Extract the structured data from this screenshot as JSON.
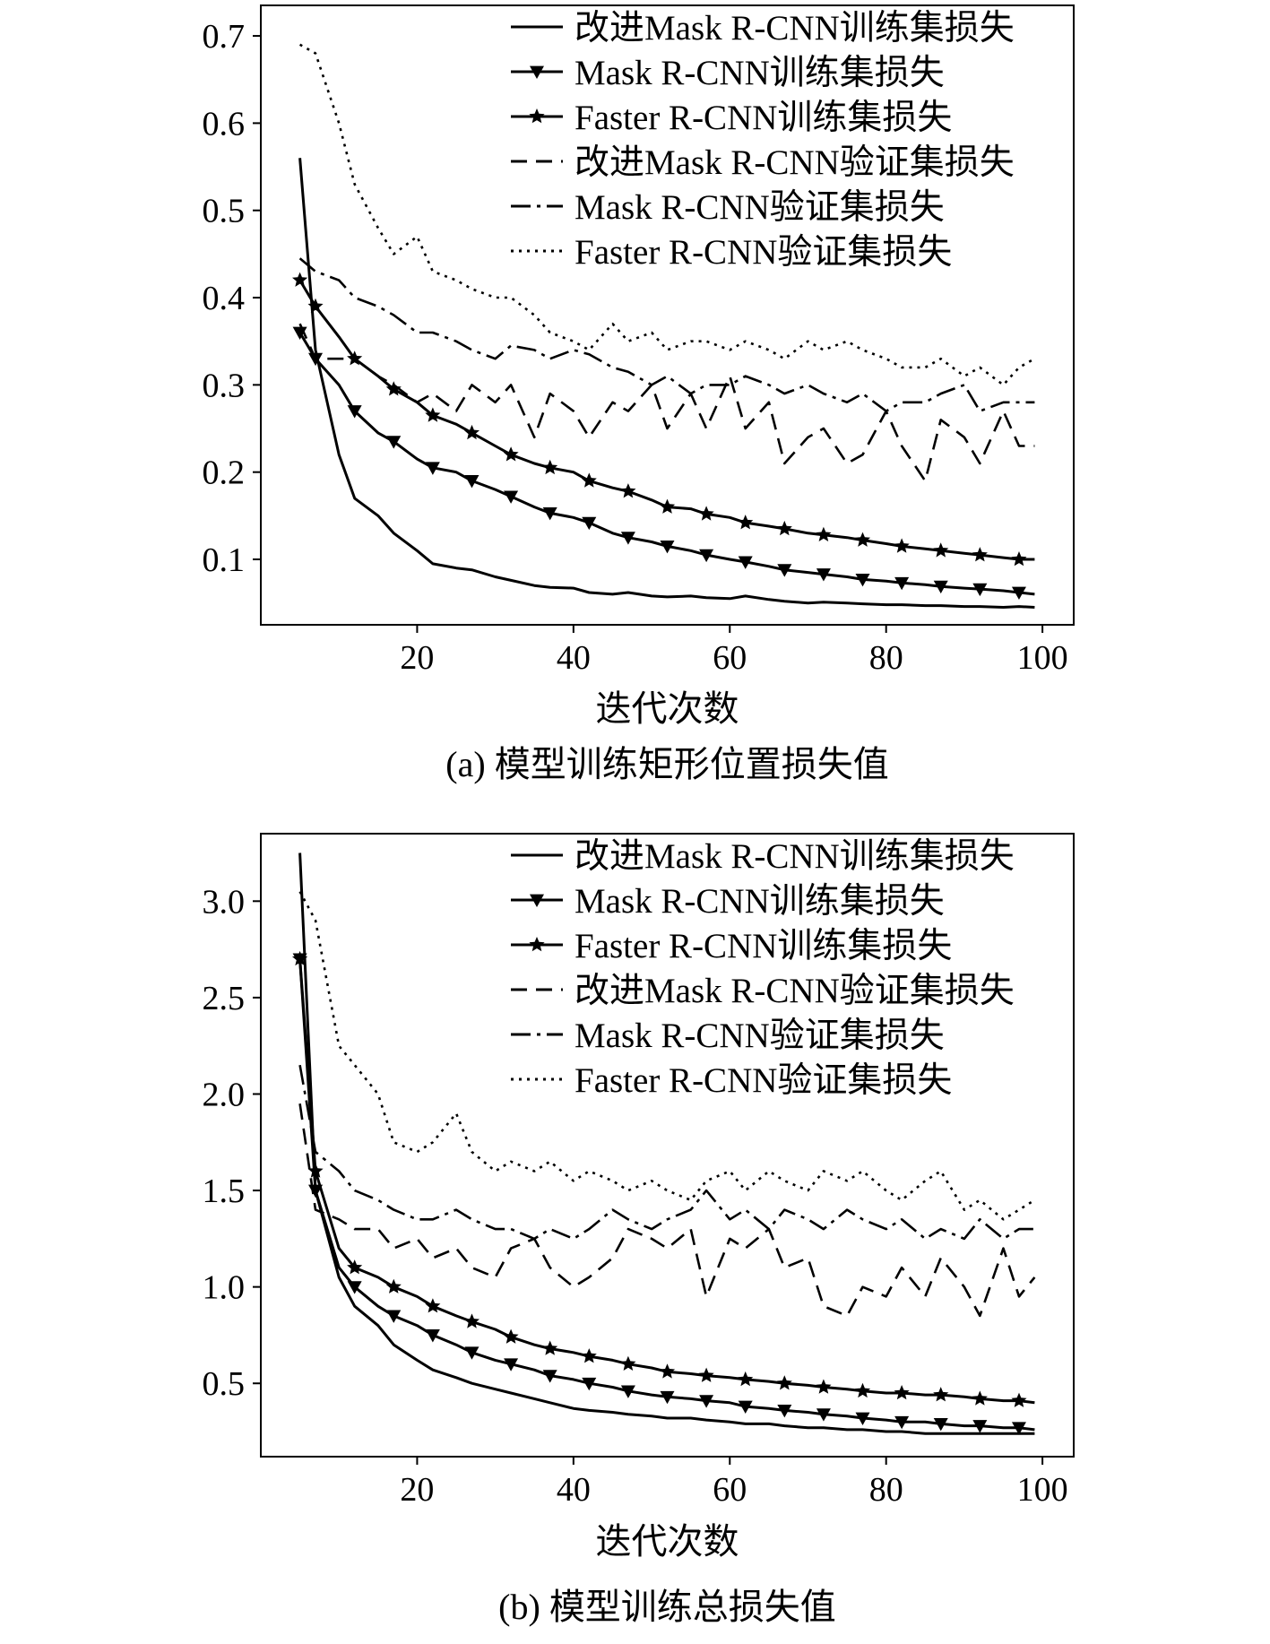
{
  "chart_data": [
    {
      "type": "line",
      "xlabel": "迭代次数",
      "ylabel": "",
      "caption": "(a) 模型训练矩形位置损失值",
      "xlim": [
        0,
        104
      ],
      "ylim": [
        0.025,
        0.735
      ],
      "xticks": [
        "20",
        "40",
        "60",
        "80",
        "100"
      ],
      "yticks": [
        "0.1",
        "0.2",
        "0.3",
        "0.4",
        "0.5",
        "0.6",
        "0.7"
      ],
      "legend_position": "top-right",
      "x": [
        5,
        7,
        10,
        12,
        15,
        17,
        20,
        22,
        25,
        27,
        30,
        32,
        35,
        37,
        40,
        42,
        45,
        47,
        50,
        52,
        55,
        57,
        60,
        62,
        65,
        67,
        70,
        72,
        75,
        77,
        80,
        82,
        85,
        87,
        90,
        92,
        95,
        97,
        99
      ],
      "series": [
        {
          "name": "改进Mask R-CNN训练集损失",
          "style": "solid",
          "marker": "",
          "values": [
            0.56,
            0.34,
            0.22,
            0.17,
            0.15,
            0.13,
            0.11,
            0.095,
            0.09,
            0.088,
            0.08,
            0.076,
            0.07,
            0.068,
            0.067,
            0.062,
            0.06,
            0.062,
            0.058,
            0.057,
            0.058,
            0.056,
            0.055,
            0.058,
            0.054,
            0.052,
            0.05,
            0.051,
            0.05,
            0.049,
            0.048,
            0.048,
            0.047,
            0.047,
            0.046,
            0.046,
            0.045,
            0.046,
            0.045
          ]
        },
        {
          "name": "Mask R-CNN训练集损失",
          "style": "solid",
          "marker": "triangle-down",
          "values": [
            0.36,
            0.33,
            0.3,
            0.27,
            0.245,
            0.235,
            0.215,
            0.205,
            0.2,
            0.19,
            0.18,
            0.172,
            0.16,
            0.153,
            0.148,
            0.142,
            0.13,
            0.125,
            0.12,
            0.115,
            0.11,
            0.105,
            0.1,
            0.097,
            0.092,
            0.088,
            0.085,
            0.083,
            0.08,
            0.077,
            0.075,
            0.073,
            0.071,
            0.069,
            0.067,
            0.066,
            0.064,
            0.062,
            0.06
          ]
        },
        {
          "name": "Faster R-CNN训练集损失",
          "style": "solid",
          "marker": "star",
          "values": [
            0.42,
            0.39,
            0.355,
            0.33,
            0.31,
            0.295,
            0.28,
            0.265,
            0.255,
            0.245,
            0.23,
            0.22,
            0.21,
            0.205,
            0.2,
            0.19,
            0.182,
            0.178,
            0.168,
            0.16,
            0.158,
            0.152,
            0.148,
            0.142,
            0.138,
            0.135,
            0.13,
            0.128,
            0.125,
            0.122,
            0.118,
            0.115,
            0.112,
            0.11,
            0.107,
            0.105,
            0.102,
            0.1,
            0.1
          ]
        },
        {
          "name": "改进Mask R-CNN验证集损失",
          "style": "dashed",
          "marker": "",
          "values": [
            0.37,
            0.33,
            0.33,
            0.33,
            0.31,
            0.3,
            0.28,
            0.29,
            0.27,
            0.3,
            0.28,
            0.3,
            0.24,
            0.29,
            0.27,
            0.24,
            0.28,
            0.27,
            0.3,
            0.25,
            0.29,
            0.25,
            0.31,
            0.25,
            0.28,
            0.21,
            0.24,
            0.25,
            0.21,
            0.22,
            0.27,
            0.23,
            0.19,
            0.26,
            0.24,
            0.21,
            0.27,
            0.23,
            0.23
          ]
        },
        {
          "name": "Mask R-CNN验证集损失",
          "style": "dashdot",
          "marker": "",
          "values": [
            0.445,
            0.43,
            0.42,
            0.4,
            0.39,
            0.38,
            0.36,
            0.36,
            0.35,
            0.34,
            0.33,
            0.345,
            0.34,
            0.33,
            0.34,
            0.335,
            0.32,
            0.315,
            0.3,
            0.31,
            0.29,
            0.3,
            0.3,
            0.31,
            0.3,
            0.29,
            0.3,
            0.29,
            0.28,
            0.29,
            0.27,
            0.28,
            0.28,
            0.29,
            0.3,
            0.27,
            0.28,
            0.28,
            0.28
          ]
        },
        {
          "name": "Faster R-CNN验证集损失",
          "style": "dotted",
          "marker": "",
          "values": [
            0.69,
            0.68,
            0.6,
            0.53,
            0.48,
            0.45,
            0.47,
            0.43,
            0.42,
            0.41,
            0.4,
            0.4,
            0.38,
            0.36,
            0.35,
            0.34,
            0.37,
            0.35,
            0.36,
            0.34,
            0.35,
            0.35,
            0.34,
            0.35,
            0.34,
            0.33,
            0.35,
            0.34,
            0.35,
            0.34,
            0.33,
            0.32,
            0.32,
            0.33,
            0.31,
            0.32,
            0.3,
            0.32,
            0.33
          ]
        }
      ]
    },
    {
      "type": "line",
      "xlabel": "迭代次数",
      "ylabel": "",
      "caption": "(b) 模型训练总损失值",
      "xlim": [
        0,
        104
      ],
      "ylim": [
        0.12,
        3.35
      ],
      "xticks": [
        "20",
        "40",
        "60",
        "80",
        "100"
      ],
      "yticks": [
        "0.5",
        "1.0",
        "1.5",
        "2.0",
        "2.5",
        "3.0"
      ],
      "legend_position": "top-right",
      "x": [
        5,
        7,
        10,
        12,
        15,
        17,
        20,
        22,
        25,
        27,
        30,
        32,
        35,
        37,
        40,
        42,
        45,
        47,
        50,
        52,
        55,
        57,
        60,
        62,
        65,
        67,
        70,
        72,
        75,
        77,
        80,
        82,
        85,
        87,
        90,
        92,
        95,
        97,
        99
      ],
      "series": [
        {
          "name": "改进Mask R-CNN训练集损失",
          "style": "solid",
          "marker": "",
          "values": [
            3.25,
            1.5,
            1.05,
            0.9,
            0.8,
            0.7,
            0.62,
            0.57,
            0.53,
            0.5,
            0.47,
            0.45,
            0.42,
            0.4,
            0.37,
            0.36,
            0.35,
            0.34,
            0.33,
            0.32,
            0.32,
            0.31,
            0.3,
            0.29,
            0.29,
            0.28,
            0.27,
            0.27,
            0.26,
            0.26,
            0.25,
            0.25,
            0.24,
            0.24,
            0.24,
            0.24,
            0.24,
            0.24,
            0.24
          ]
        },
        {
          "name": "Mask R-CNN训练集损失",
          "style": "solid",
          "marker": "triangle-down",
          "values": [
            2.7,
            1.5,
            1.1,
            1.0,
            0.9,
            0.85,
            0.8,
            0.75,
            0.7,
            0.66,
            0.62,
            0.6,
            0.57,
            0.54,
            0.52,
            0.5,
            0.48,
            0.46,
            0.44,
            0.43,
            0.42,
            0.41,
            0.4,
            0.38,
            0.37,
            0.36,
            0.35,
            0.34,
            0.33,
            0.32,
            0.31,
            0.3,
            0.3,
            0.29,
            0.28,
            0.28,
            0.27,
            0.27,
            0.26
          ]
        },
        {
          "name": "Faster R-CNN训练集损失",
          "style": "solid",
          "marker": "star",
          "values": [
            2.7,
            1.6,
            1.2,
            1.1,
            1.05,
            1.0,
            0.95,
            0.9,
            0.85,
            0.82,
            0.78,
            0.74,
            0.7,
            0.68,
            0.66,
            0.64,
            0.62,
            0.6,
            0.58,
            0.56,
            0.55,
            0.54,
            0.53,
            0.52,
            0.51,
            0.5,
            0.49,
            0.48,
            0.47,
            0.46,
            0.45,
            0.45,
            0.44,
            0.44,
            0.43,
            0.42,
            0.41,
            0.41,
            0.4
          ]
        },
        {
          "name": "改进Mask R-CNN验证集损失",
          "style": "dashed",
          "marker": "",
          "values": [
            1.95,
            1.4,
            1.35,
            1.3,
            1.3,
            1.2,
            1.25,
            1.15,
            1.2,
            1.1,
            1.05,
            1.2,
            1.25,
            1.1,
            1.0,
            1.05,
            1.15,
            1.3,
            1.25,
            1.2,
            1.3,
            0.95,
            1.25,
            1.2,
            1.3,
            1.1,
            1.15,
            0.9,
            0.85,
            1.0,
            0.95,
            1.1,
            0.95,
            1.15,
            1.0,
            0.85,
            1.2,
            0.95,
            1.05
          ]
        },
        {
          "name": "Mask R-CNN验证集损失",
          "style": "dashdot",
          "marker": "",
          "values": [
            2.15,
            1.7,
            1.6,
            1.5,
            1.45,
            1.4,
            1.35,
            1.35,
            1.4,
            1.35,
            1.3,
            1.3,
            1.25,
            1.3,
            1.25,
            1.3,
            1.4,
            1.35,
            1.3,
            1.35,
            1.4,
            1.5,
            1.35,
            1.4,
            1.3,
            1.4,
            1.35,
            1.3,
            1.4,
            1.35,
            1.3,
            1.35,
            1.25,
            1.3,
            1.25,
            1.35,
            1.25,
            1.3,
            1.3
          ]
        },
        {
          "name": "Faster R-CNN验证集损失",
          "style": "dotted",
          "marker": "",
          "values": [
            3.05,
            2.9,
            2.25,
            2.15,
            2.0,
            1.75,
            1.7,
            1.75,
            1.9,
            1.7,
            1.6,
            1.65,
            1.6,
            1.65,
            1.55,
            1.6,
            1.55,
            1.5,
            1.55,
            1.5,
            1.45,
            1.55,
            1.6,
            1.5,
            1.6,
            1.55,
            1.5,
            1.6,
            1.55,
            1.6,
            1.5,
            1.45,
            1.55,
            1.6,
            1.4,
            1.45,
            1.35,
            1.4,
            1.45
          ]
        }
      ]
    }
  ]
}
